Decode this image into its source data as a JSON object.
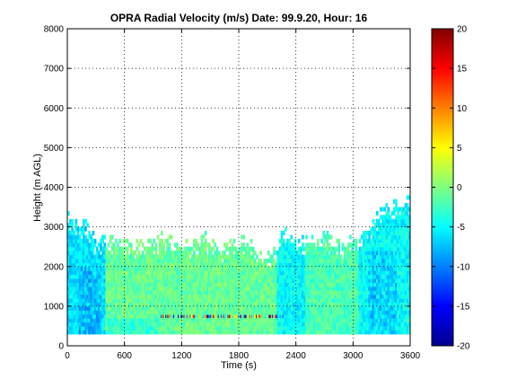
{
  "chart_data": {
    "type": "heatmap",
    "title": "OPRA Radial Velocity (m/s)  Date: 99.9.20, Hour: 16",
    "xlabel": "Time (s)",
    "ylabel": "Height (m AGL)",
    "xlim": [
      0,
      3600
    ],
    "ylim": [
      0,
      8000
    ],
    "x_ticks": [
      0,
      600,
      1200,
      1800,
      2400,
      3000,
      3600
    ],
    "y_ticks": [
      0,
      1000,
      2000,
      3000,
      4000,
      5000,
      6000,
      7000,
      8000
    ],
    "grid": true,
    "colormap": "jet",
    "colorbar": {
      "range": [
        -20,
        20
      ],
      "ticks": [
        -20,
        -15,
        -10,
        -5,
        0,
        5,
        10,
        15,
        20
      ],
      "location": "right"
    },
    "echo_top_profile": {
      "time_s": [
        0,
        60,
        120,
        200,
        300,
        400,
        500,
        600,
        700,
        800,
        900,
        1000,
        1100,
        1200,
        1300,
        1400,
        1500,
        1600,
        1700,
        1800,
        1900,
        2000,
        2100,
        2200,
        2250,
        2300,
        2400,
        2500,
        2600,
        2700,
        2800,
        2900,
        3000,
        3100,
        3200,
        3300,
        3400,
        3500,
        3600
      ],
      "height_m": [
        3200,
        2900,
        3000,
        2900,
        2500,
        2600,
        2500,
        2500,
        2400,
        2500,
        2500,
        2700,
        2500,
        2500,
        2400,
        2700,
        2500,
        2300,
        2500,
        2500,
        2600,
        2200,
        2200,
        2400,
        2900,
        2700,
        2400,
        2600,
        2600,
        2700,
        2400,
        2500,
        2600,
        2800,
        3000,
        3300,
        3400,
        3500,
        3600
      ]
    },
    "echo_base_m": 300,
    "velocity_regions": [
      {
        "time_s": [
          0,
          400
        ],
        "height_m": [
          300,
          2900
        ],
        "velocity_ms": -6
      },
      {
        "time_s": [
          400,
          2200
        ],
        "height_m": [
          300,
          2500
        ],
        "velocity_ms": -1
      },
      {
        "time_s": [
          2200,
          2500
        ],
        "height_m": [
          300,
          2800
        ],
        "velocity_ms": -5
      },
      {
        "time_s": [
          2500,
          3050
        ],
        "height_m": [
          300,
          2500
        ],
        "velocity_ms": -2
      },
      {
        "time_s": [
          3050,
          3600
        ],
        "height_m": [
          300,
          3500
        ],
        "velocity_ms": -5
      }
    ],
    "high_variance_band": {
      "time_s": [
        950,
        2300
      ],
      "height_m": 700,
      "velocity_range_ms": [
        -20,
        20
      ]
    }
  }
}
